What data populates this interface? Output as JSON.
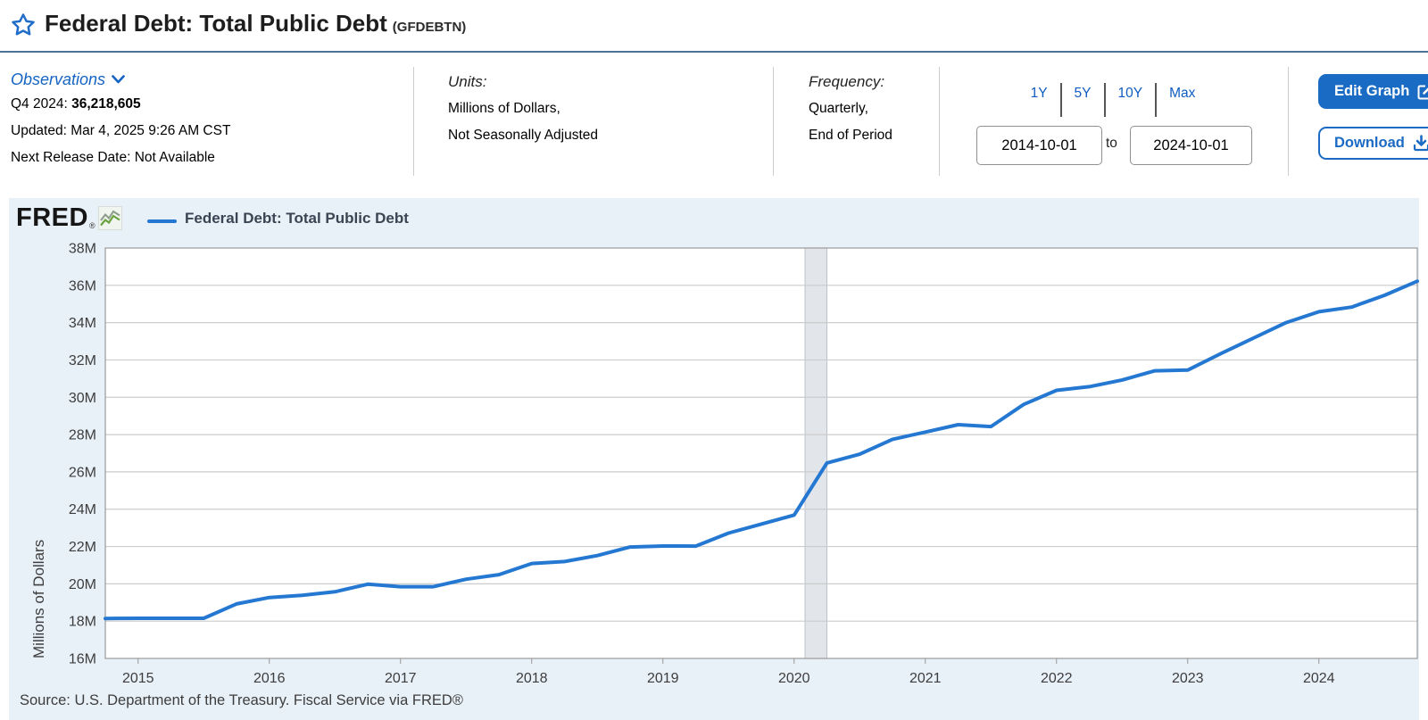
{
  "header": {
    "title": "Federal Debt: Total Public Debt",
    "series_id": "(GFDEBTN)"
  },
  "observations": {
    "label": "Observations",
    "latest_period": "Q4 2024: ",
    "latest_value": "36,218,605",
    "updated": "Updated: Mar 4, 2025 9:26 AM CST",
    "next_release": "Next Release Date: Not Available"
  },
  "units": {
    "label": "Units:",
    "line1": "Millions of Dollars,",
    "line2": "Not Seasonally Adjusted"
  },
  "frequency": {
    "label": "Frequency:",
    "line1": "Quarterly,",
    "line2": "End of Period"
  },
  "range": {
    "links": [
      "1Y",
      "5Y",
      "10Y",
      "Max"
    ],
    "start_date": "2014-10-01",
    "to_label": "to",
    "end_date": "2024-10-01"
  },
  "actions": {
    "edit_graph": "Edit Graph",
    "download": "Download"
  },
  "chart": {
    "logo": "FRED",
    "logo_reg": "®",
    "legend_label": "Federal Debt: Total Public Debt",
    "y_axis_label": "Millions of Dollars",
    "source": "Source: U.S. Department of the Treasury. Fiscal Service via FRED®"
  },
  "colors": {
    "accent_blue": "#1a6bc4",
    "link_blue": "#0f5cc0",
    "line_blue": "#2478d2",
    "panel_bg": "#e8f0f8",
    "header_rule": "#4c7096",
    "plot_border": "#999999",
    "gridline": "#cccccc",
    "recession_band": "#e2e5ea",
    "recession_edge": "#bcc2cc",
    "tick_text": "#3d3d3d"
  },
  "chart_data": {
    "type": "line",
    "title": "Federal Debt: Total Public Debt",
    "series_name": "Federal Debt: Total Public Debt",
    "xlabel": "",
    "ylabel": "Millions of Dollars",
    "grid": "horizontal-only",
    "legend_position": "top-left",
    "xlim_dates": [
      "2014-10-01",
      "2024-10-01"
    ],
    "ylim": [
      16000000,
      38000000
    ],
    "ytick_step": 2000000,
    "ytick_suffix": "M",
    "x_ticks": [
      2015,
      2016,
      2017,
      2018,
      2019,
      2020,
      2021,
      2022,
      2023,
      2024
    ],
    "recession": {
      "start_date": "2020-02-01",
      "end_date": "2020-04-01"
    },
    "x_dates": [
      "2014-10-01",
      "2015-01-01",
      "2015-04-01",
      "2015-07-01",
      "2015-10-01",
      "2016-01-01",
      "2016-04-01",
      "2016-07-01",
      "2016-10-01",
      "2017-01-01",
      "2017-04-01",
      "2017-07-01",
      "2017-10-01",
      "2018-01-01",
      "2018-04-01",
      "2018-07-01",
      "2018-10-01",
      "2019-01-01",
      "2019-04-01",
      "2019-07-01",
      "2019-10-01",
      "2020-01-01",
      "2020-04-01",
      "2020-07-01",
      "2020-10-01",
      "2021-01-01",
      "2021-04-01",
      "2021-07-01",
      "2021-10-01",
      "2022-01-01",
      "2022-04-01",
      "2022-07-01",
      "2022-10-01",
      "2023-01-01",
      "2023-04-01",
      "2023-07-01",
      "2023-10-01",
      "2024-01-01",
      "2024-04-01",
      "2024-07-01",
      "2024-10-01"
    ],
    "values": [
      18141444,
      18152056,
      18151998,
      18150618,
      18922179,
      19264939,
      19381591,
      19573445,
      19976827,
      19846420,
      19844554,
      20244900,
      20492747,
      21089643,
      21195070,
      21516058,
      21974096,
      22028026,
      22023544,
      22719402,
      23201380,
      23686790,
      26477912,
      26945391,
      27747798,
      28132570,
      28529436,
      28428919,
      29617215,
      30371138,
      30568581,
      30928912,
      31419689,
      31458438,
      32332274,
      33167334,
      34001494,
      34586500,
      34831754,
      35464674,
      36218605
    ]
  }
}
